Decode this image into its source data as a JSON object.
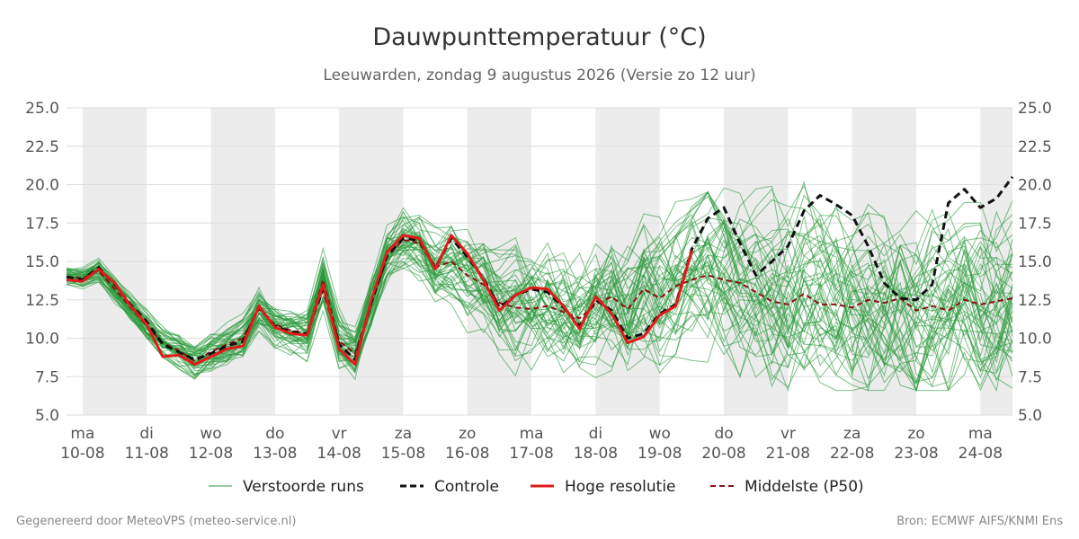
{
  "chart_data": {
    "type": "line",
    "title": "Dauwpunttemperatuur (°C)",
    "subtitle": "Leeuwarden, zondag  9 augustus 2026 (Versie zo 12 uur)",
    "xlabel": "",
    "ylabel": "",
    "ylim": [
      5.0,
      25.0
    ],
    "xlim": [
      -0.25,
      14.5
    ],
    "y_ticks": [
      "5.0",
      "7.5",
      "10.0",
      "12.5",
      "15.0",
      "17.5",
      "20.0",
      "22.5",
      "25.0"
    ],
    "x_ticks": [
      {
        "day": "ma",
        "date": "10-08"
      },
      {
        "day": "di",
        "date": "11-08"
      },
      {
        "day": "wo",
        "date": "12-08"
      },
      {
        "day": "do",
        "date": "13-08"
      },
      {
        "day": "vr",
        "date": "14-08"
      },
      {
        "day": "za",
        "date": "15-08"
      },
      {
        "day": "zo",
        "date": "16-08"
      },
      {
        "day": "ma",
        "date": "17-08"
      },
      {
        "day": "di",
        "date": "18-08"
      },
      {
        "day": "wo",
        "date": "19-08"
      },
      {
        "day": "do",
        "date": "20-08"
      },
      {
        "day": "vr",
        "date": "21-08"
      },
      {
        "day": "za",
        "date": "22-08"
      },
      {
        "day": "zo",
        "date": "23-08"
      },
      {
        "day": "ma",
        "date": "24-08"
      }
    ],
    "grid": true,
    "shaded_days": [
      "10-08",
      "12-08",
      "14-08",
      "16-08",
      "18-08",
      "20-08",
      "22-08",
      "24-08"
    ],
    "legend_position": "bottom",
    "legend": [
      "Verstoorde runs",
      "Controle",
      "Hoge resolutie",
      "Middelste (P50)"
    ],
    "colors": {
      "ensemble": "#2a9a3a",
      "control": "#111111",
      "hires": "#e01b1b",
      "median": "#8b1010",
      "shade": "#ececec",
      "grid": "#dddddd"
    },
    "ensemble": {
      "members": 50,
      "line_opacity": 0.6
    },
    "series": [
      {
        "name": "Hoge resolutie",
        "x": [
          -0.25,
          0,
          0.25,
          0.5,
          0.75,
          1,
          1.25,
          1.5,
          1.75,
          2,
          2.25,
          2.5,
          2.75,
          3,
          3.25,
          3.5,
          3.75,
          4,
          4.25,
          4.5,
          4.75,
          5,
          5.25,
          5.5,
          5.75,
          6,
          6.25,
          6.5,
          6.75,
          7,
          7.25,
          7.5,
          7.75,
          8,
          8.25,
          8.5,
          8.75,
          9,
          9.25,
          9.5
        ],
        "y": [
          13.8,
          13.7,
          14.5,
          13.6,
          12.1,
          10.9,
          8.8,
          8.9,
          8.3,
          8.8,
          9.3,
          9.5,
          12.1,
          10.7,
          10.3,
          10.2,
          13.5,
          9.3,
          8.3,
          12.5,
          15.6,
          16.7,
          16.5,
          14.5,
          16.7,
          15.5,
          13.8,
          11.8,
          12.8,
          13.3,
          13.2,
          12.1,
          10.6,
          12.7,
          11.6,
          9.7,
          10.1,
          11.5,
          12.1,
          15.7
        ]
      },
      {
        "name": "Controle",
        "x": [
          -0.25,
          0,
          0.25,
          0.5,
          0.75,
          1,
          1.25,
          1.5,
          1.75,
          2,
          2.25,
          2.5,
          2.75,
          3,
          3.25,
          3.5,
          3.75,
          4,
          4.25,
          4.5,
          4.75,
          5,
          5.25,
          5.5,
          5.75,
          6,
          6.25,
          6.5,
          6.75,
          7,
          7.25,
          7.5,
          7.75,
          8,
          8.25,
          8.5,
          8.75,
          9,
          9.25,
          9.5,
          9.75,
          10,
          10.25,
          10.5,
          10.75,
          11,
          11.25,
          11.5,
          11.75,
          12,
          12.25,
          12.5,
          12.75,
          13,
          13.25,
          13.5,
          13.75,
          14,
          14.25,
          14.5
        ],
        "y": [
          14.0,
          13.8,
          14.6,
          13.5,
          12.2,
          11.1,
          9.6,
          9.1,
          8.6,
          9.0,
          9.5,
          9.8,
          12.0,
          10.8,
          10.4,
          10.3,
          13.2,
          9.6,
          8.6,
          12.3,
          15.4,
          16.5,
          16.4,
          14.6,
          16.5,
          15.3,
          13.9,
          12.0,
          12.8,
          13.2,
          13.0,
          12.0,
          10.8,
          12.5,
          11.8,
          10.0,
          10.3,
          11.6,
          12.2,
          15.8,
          17.8,
          18.5,
          16.2,
          14.1,
          15.0,
          16.0,
          18.3,
          19.3,
          18.7,
          18.0,
          16.0,
          13.6,
          12.6,
          12.5,
          13.5,
          18.8,
          19.7,
          18.5,
          19.1,
          20.5
        ]
      },
      {
        "name": "Middelste (P50)",
        "x": [
          -0.25,
          0,
          0.25,
          0.5,
          0.75,
          1,
          1.25,
          1.5,
          1.75,
          2,
          2.25,
          2.5,
          2.75,
          3,
          3.25,
          3.5,
          3.75,
          4,
          4.25,
          4.5,
          4.75,
          5,
          5.25,
          5.5,
          5.75,
          6,
          6.25,
          6.5,
          6.75,
          7,
          7.25,
          7.5,
          7.75,
          8,
          8.25,
          8.5,
          8.75,
          9,
          9.25,
          9.5,
          9.75,
          10,
          10.25,
          10.5,
          10.75,
          11,
          11.25,
          11.5,
          11.75,
          12,
          12.25,
          12.5,
          12.75,
          13,
          13.25,
          13.5,
          13.75,
          14,
          14.25,
          14.5
        ],
        "y": [
          14.0,
          13.9,
          14.4,
          13.2,
          12.0,
          10.8,
          9.7,
          9.2,
          8.5,
          9.1,
          9.6,
          10.0,
          11.9,
          10.9,
          10.5,
          10.3,
          13.8,
          9.8,
          9.0,
          12.2,
          15.3,
          16.4,
          16.2,
          14.6,
          15.0,
          14.1,
          13.5,
          12.3,
          12.0,
          11.9,
          12.1,
          11.7,
          11.3,
          12.2,
          12.7,
          11.9,
          13.2,
          12.6,
          13.4,
          13.8,
          14.1,
          13.8,
          13.6,
          13.0,
          12.4,
          12.2,
          12.9,
          12.2,
          12.2,
          12.0,
          12.5,
          12.3,
          12.6,
          11.8,
          12.1,
          11.8,
          12.5,
          12.2,
          12.4,
          12.6
        ]
      }
    ]
  },
  "footer": {
    "left": "Gegenereerd door MeteoVPS (meteo-service.nl)",
    "right": "Bron: ECMWF AIFS/KNMI Ens"
  }
}
